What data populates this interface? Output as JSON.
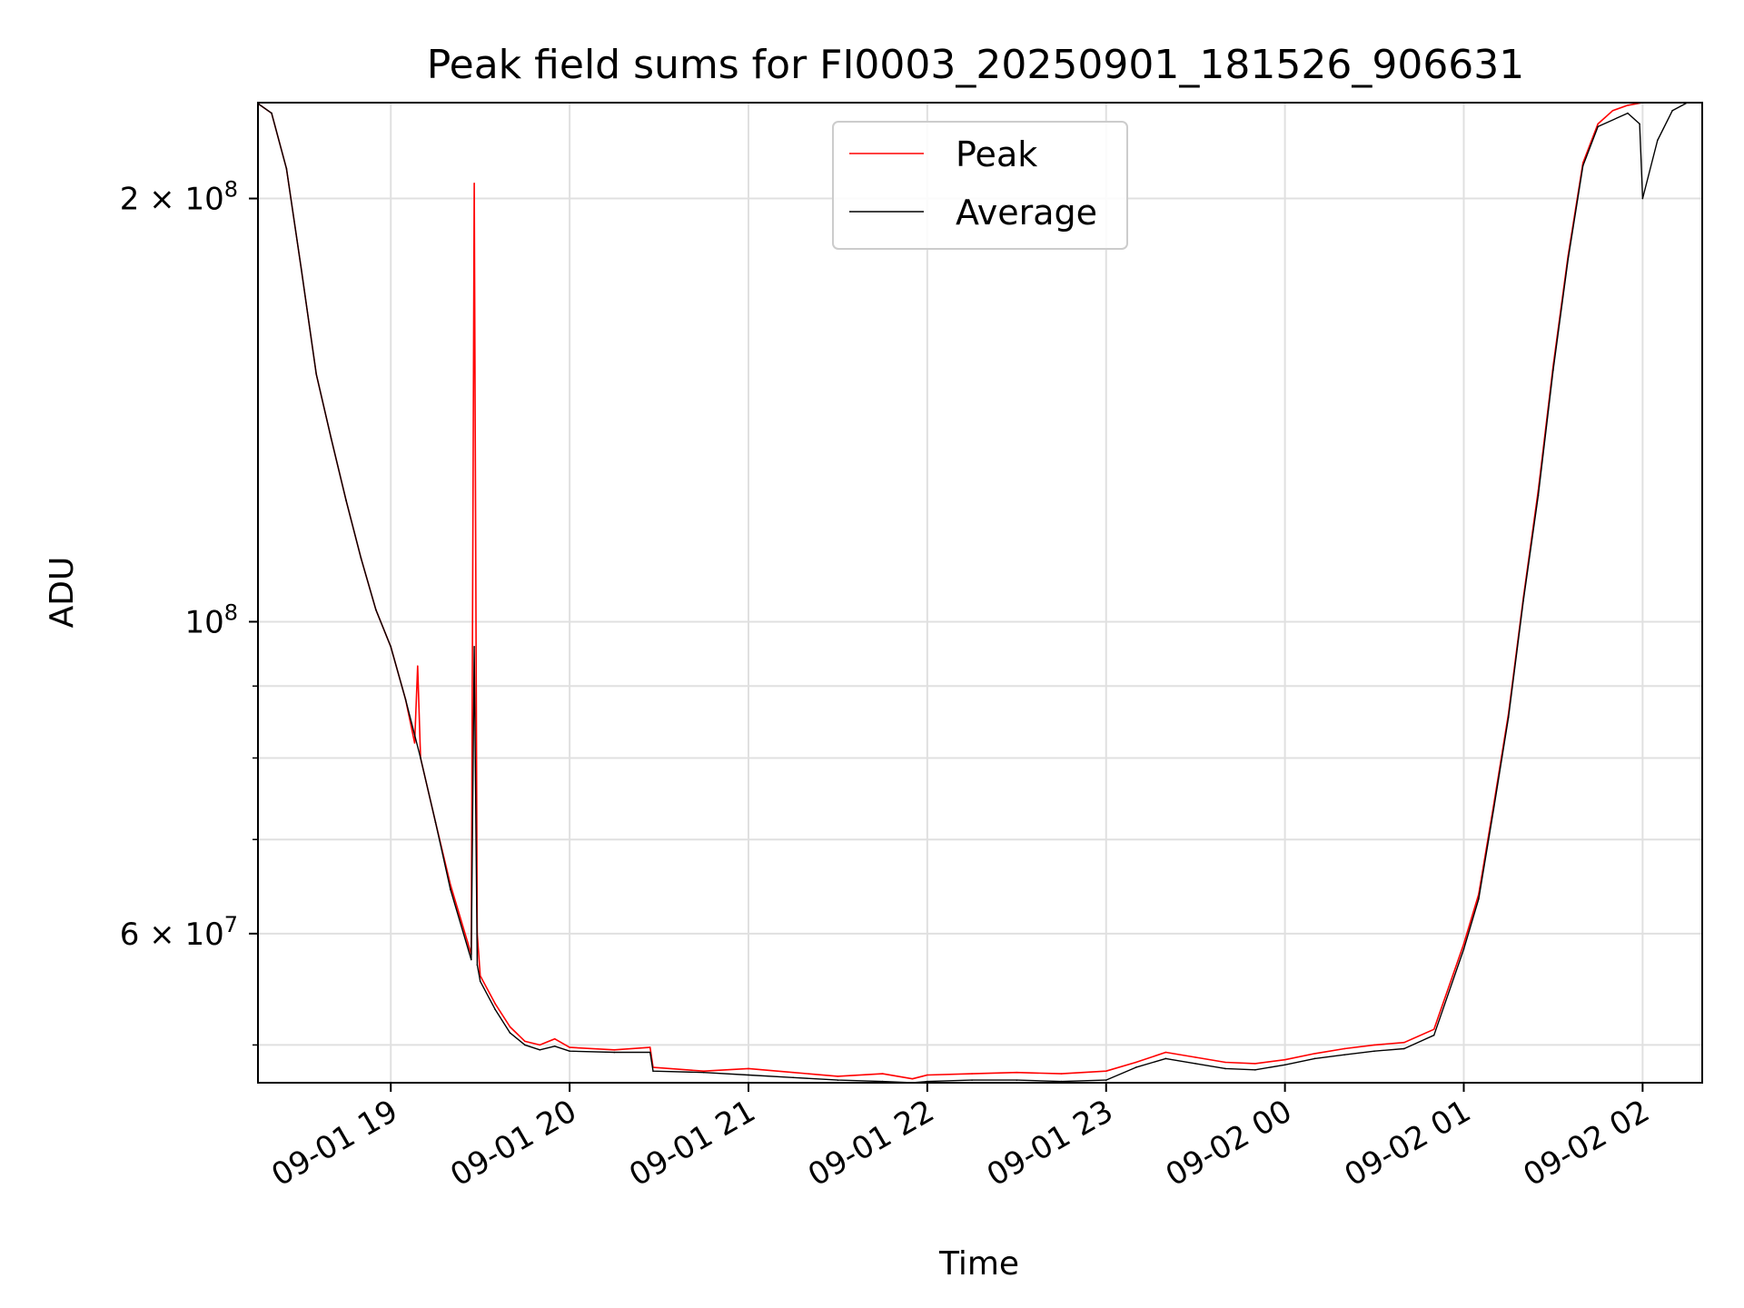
{
  "chart_data": {
    "type": "line",
    "title": "Peak field sums for FI0003_20250901_181526_906631",
    "xlabel": "Time",
    "ylabel": "ADU",
    "yscale": "log",
    "xlim": [
      "2025-09-01 18:15:26",
      "2025-09-02 02:20:00"
    ],
    "ylim": [
      47000000,
      234000000
    ],
    "grid": true,
    "legend_position": "upper center",
    "x_ticks": [
      "09-01 19",
      "09-01 20",
      "09-01 21",
      "09-01 22",
      "09-01 23",
      "09-02 00",
      "09-02 01",
      "09-02 02"
    ],
    "x_tick_times": [
      "2025-09-01 19:00",
      "2025-09-01 20:00",
      "2025-09-01 21:00",
      "2025-09-01 22:00",
      "2025-09-01 23:00",
      "2025-09-02 00:00",
      "2025-09-02 01:00",
      "2025-09-02 02:00"
    ],
    "y_ticks": [
      {
        "value": 200000000,
        "mantissa": "2",
        "times": "×",
        "base": "10",
        "exp": "8"
      },
      {
        "value": 100000000,
        "mantissa": "",
        "times": "",
        "base": "10",
        "exp": "8"
      },
      {
        "value": 60000000,
        "mantissa": "6",
        "times": "×",
        "base": "10",
        "exp": "7"
      }
    ],
    "y_minor_ticks": [
      50000000,
      70000000,
      80000000,
      90000000
    ],
    "series": [
      {
        "name": "Peak",
        "color": "#ff0000",
        "x": [
          "2025-09-01 18:15",
          "2025-09-01 18:20",
          "2025-09-01 18:25",
          "2025-09-01 18:30",
          "2025-09-01 18:35",
          "2025-09-01 18:40",
          "2025-09-01 18:45",
          "2025-09-01 18:50",
          "2025-09-01 18:55",
          "2025-09-01 19:00",
          "2025-09-01 19:05",
          "2025-09-01 19:08",
          "2025-09-01 19:09",
          "2025-09-01 19:10",
          "2025-09-01 19:15",
          "2025-09-01 19:20",
          "2025-09-01 19:27",
          "2025-09-01 19:28",
          "2025-09-01 19:29",
          "2025-09-01 19:30",
          "2025-09-01 19:35",
          "2025-09-01 19:40",
          "2025-09-01 19:45",
          "2025-09-01 19:50",
          "2025-09-01 19:55",
          "2025-09-01 20:00",
          "2025-09-01 20:15",
          "2025-09-01 20:27",
          "2025-09-01 20:28",
          "2025-09-01 20:45",
          "2025-09-01 21:00",
          "2025-09-01 21:15",
          "2025-09-01 21:30",
          "2025-09-01 21:45",
          "2025-09-01 21:55",
          "2025-09-01 22:00",
          "2025-09-01 22:15",
          "2025-09-01 22:30",
          "2025-09-01 22:45",
          "2025-09-01 23:00",
          "2025-09-01 23:10",
          "2025-09-01 23:20",
          "2025-09-01 23:30",
          "2025-09-01 23:40",
          "2025-09-01 23:50",
          "2025-09-02 00:00",
          "2025-09-02 00:10",
          "2025-09-02 00:20",
          "2025-09-02 00:30",
          "2025-09-02 00:40",
          "2025-09-02 00:50",
          "2025-09-02 01:00",
          "2025-09-02 01:05",
          "2025-09-02 01:10",
          "2025-09-02 01:15",
          "2025-09-02 01:20",
          "2025-09-02 01:25",
          "2025-09-02 01:30",
          "2025-09-02 01:35",
          "2025-09-02 01:40",
          "2025-09-02 01:45",
          "2025-09-02 01:50",
          "2025-09-02 01:55",
          "2025-09-02 02:00"
        ],
        "values": [
          234000000,
          230000000,
          210000000,
          178000000,
          150000000,
          135000000,
          122000000,
          111000000,
          102000000,
          96000000,
          88000000,
          82000000,
          93000000,
          80000000,
          72000000,
          65000000,
          58000000,
          205000000,
          60000000,
          56000000,
          53500000,
          51500000,
          50300000,
          50000000,
          50500000,
          49800000,
          49600000,
          49800000,
          48200000,
          47900000,
          48100000,
          47800000,
          47500000,
          47700000,
          47300000,
          47600000,
          47700000,
          47800000,
          47700000,
          47900000,
          48600000,
          49400000,
          49000000,
          48600000,
          48500000,
          48800000,
          49300000,
          49700000,
          50000000,
          50200000,
          51300000,
          59000000,
          64000000,
          74000000,
          86000000,
          104000000,
          124000000,
          152000000,
          182000000,
          212000000,
          226000000,
          231000000,
          233000000,
          234000000
        ]
      },
      {
        "name": "Average",
        "color": "#000000",
        "x": [
          "2025-09-01 18:15",
          "2025-09-01 18:20",
          "2025-09-01 18:25",
          "2025-09-01 18:30",
          "2025-09-01 18:35",
          "2025-09-01 18:40",
          "2025-09-01 18:45",
          "2025-09-01 18:50",
          "2025-09-01 18:55",
          "2025-09-01 19:00",
          "2025-09-01 19:05",
          "2025-09-01 19:10",
          "2025-09-01 19:15",
          "2025-09-01 19:20",
          "2025-09-01 19:27",
          "2025-09-01 19:28",
          "2025-09-01 19:29",
          "2025-09-01 19:30",
          "2025-09-01 19:35",
          "2025-09-01 19:40",
          "2025-09-01 19:45",
          "2025-09-01 19:50",
          "2025-09-01 19:55",
          "2025-09-01 20:00",
          "2025-09-01 20:15",
          "2025-09-01 20:27",
          "2025-09-01 20:28",
          "2025-09-01 20:45",
          "2025-09-01 21:00",
          "2025-09-01 21:15",
          "2025-09-01 21:30",
          "2025-09-01 21:45",
          "2025-09-01 21:55",
          "2025-09-01 22:00",
          "2025-09-01 22:15",
          "2025-09-01 22:30",
          "2025-09-01 22:45",
          "2025-09-01 23:00",
          "2025-09-01 23:10",
          "2025-09-01 23:20",
          "2025-09-01 23:30",
          "2025-09-01 23:40",
          "2025-09-01 23:50",
          "2025-09-02 00:00",
          "2025-09-02 00:10",
          "2025-09-02 00:20",
          "2025-09-02 00:30",
          "2025-09-02 00:40",
          "2025-09-02 00:50",
          "2025-09-02 01:00",
          "2025-09-02 01:05",
          "2025-09-02 01:10",
          "2025-09-02 01:15",
          "2025-09-02 01:20",
          "2025-09-02 01:25",
          "2025-09-02 01:30",
          "2025-09-02 01:35",
          "2025-09-02 01:40",
          "2025-09-02 01:45",
          "2025-09-02 01:55",
          "2025-09-02 01:59",
          "2025-09-02 02:00",
          "2025-09-02 02:05",
          "2025-09-02 02:10",
          "2025-09-02 02:15",
          "2025-09-02 02:20"
        ],
        "values": [
          234000000,
          230000000,
          210000000,
          178000000,
          150000000,
          135000000,
          122000000,
          111000000,
          102000000,
          96000000,
          88000000,
          80000000,
          72000000,
          64500000,
          57500000,
          96000000,
          57000000,
          55500000,
          53000000,
          51000000,
          50000000,
          49600000,
          49900000,
          49500000,
          49400000,
          49400000,
          47900000,
          47800000,
          47600000,
          47400000,
          47200000,
          47100000,
          47000000,
          47100000,
          47200000,
          47200000,
          47100000,
          47200000,
          48200000,
          48900000,
          48500000,
          48100000,
          48000000,
          48400000,
          48900000,
          49200000,
          49500000,
          49700000,
          50800000,
          58500000,
          63500000,
          73500000,
          85500000,
          103500000,
          123000000,
          151000000,
          181000000,
          211000000,
          225000000,
          230000000,
          226000000,
          200000000,
          220000000,
          231000000,
          234000000,
          234000000
        ]
      }
    ],
    "spikes": [
      {
        "series": "Peak",
        "x": "2025-09-01 19:09",
        "value": 93000000
      },
      {
        "series": "Peak",
        "x": "2025-09-01 19:28",
        "value": 205000000
      },
      {
        "series": "Average",
        "x": "2025-09-01 19:28",
        "value": 96000000
      },
      {
        "series": "Average",
        "x": "2025-09-02 02:00",
        "value": 200000000
      }
    ]
  }
}
